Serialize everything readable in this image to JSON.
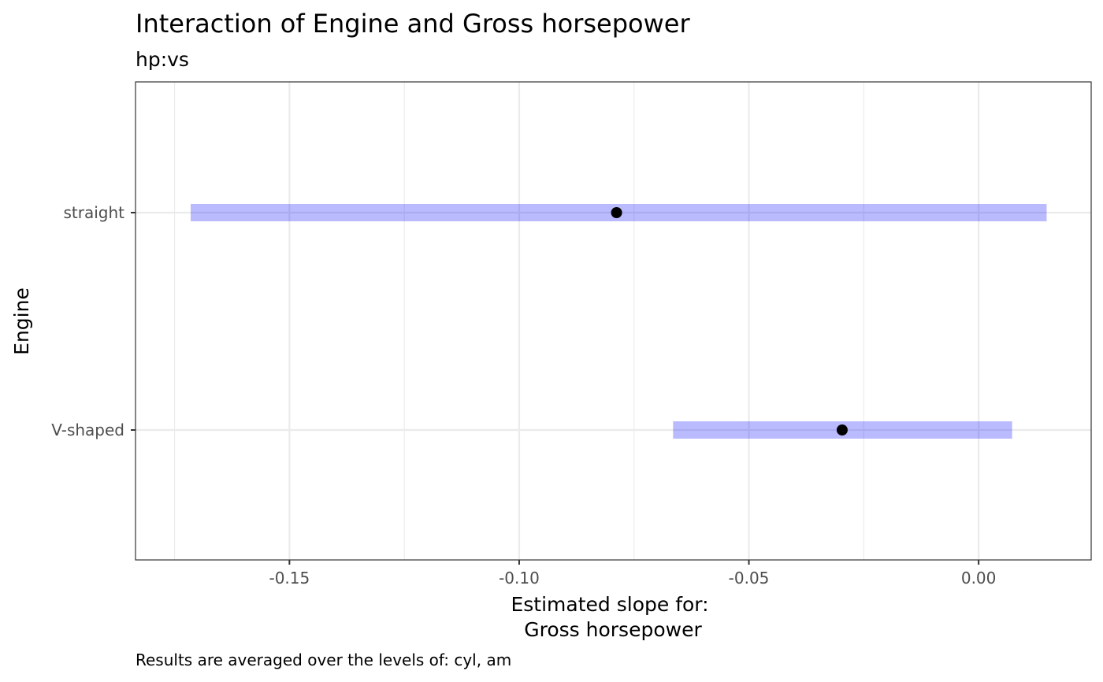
{
  "chart_data": {
    "type": "interval",
    "title": "Interaction of Engine and Gross horsepower",
    "subtitle": "hp:vs",
    "xlabel_lines": [
      "Estimated slope for:",
      "Gross horsepower"
    ],
    "ylabel": "Engine",
    "caption": "Results are averaged over the levels of: cyl, am",
    "categories": [
      "straight",
      "V-shaped"
    ],
    "estimates": [
      -0.0788,
      -0.0297
    ],
    "lower": [
      -0.1715,
      -0.0665
    ],
    "upper": [
      0.0148,
      0.0073
    ],
    "xlim": [
      -0.1835,
      0.0245
    ],
    "x_ticks": [
      -0.15,
      -0.1,
      -0.05,
      0.0
    ],
    "x_tick_labels": [
      "-0.15",
      "-0.10",
      "-0.05",
      "0.00"
    ],
    "x_minor_ticks": [
      -0.175,
      -0.125,
      -0.075,
      -0.025
    ],
    "grid": true,
    "legend": "none",
    "colors": {
      "interval": "#0000ff",
      "interval_opacity": 0.27,
      "point": "#000000",
      "grid": "#ebebeb",
      "panel_border": "#333333"
    }
  }
}
